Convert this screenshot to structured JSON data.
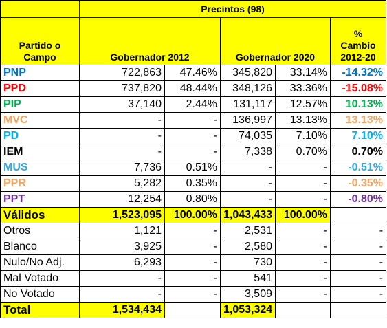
{
  "header": {
    "precincts": "Precintos (98)",
    "party_label_line1": "Partido o",
    "party_label_line2": "Campo",
    "gov2012": "Gobernador 2012",
    "gov2020": "Gobernador 2020",
    "change_line1": "%",
    "change_line2": "Cambio",
    "change_line3": "2012-20"
  },
  "parties": [
    {
      "name": "PNP",
      "color": "#0070c0",
      "v2012": "722,863",
      "p2012": "47.46%",
      "v2020": "345,820",
      "p2020": "33.14%",
      "change": "-14.32%"
    },
    {
      "name": "PPD",
      "color": "#ff0000",
      "v2012": "737,820",
      "p2012": "48.44%",
      "v2020": "348,126",
      "p2020": "33.36%",
      "change": "-15.08%"
    },
    {
      "name": "PIP",
      "color": "#00b050",
      "v2012": "37,140",
      "p2012": "2.44%",
      "v2020": "131,117",
      "p2020": "12.57%",
      "change": "10.13%"
    },
    {
      "name": "MVC",
      "color": "#f4a460",
      "v2012": "-",
      "p2012": "-",
      "v2020": "136,997",
      "p2020": "13.13%",
      "change": "13.13%"
    },
    {
      "name": "PD",
      "color": "#00b0f0",
      "v2012": "-",
      "p2012": "-",
      "v2020": "74,035",
      "p2020": "7.10%",
      "change": "7.10%"
    },
    {
      "name": "IEM",
      "color": "#000000",
      "v2012": "-",
      "p2012": "-",
      "v2020": "7,338",
      "p2020": "0.70%",
      "change": "0.70%"
    },
    {
      "name": "MUS",
      "color": "#33a8e0",
      "v2012": "7,736",
      "p2012": "0.51%",
      "v2020": "-",
      "p2020": "-",
      "change": "-0.51%"
    },
    {
      "name": "PPR",
      "color": "#f4a460",
      "v2012": "5,282",
      "p2012": "0.35%",
      "v2020": "-",
      "p2020": "-",
      "change": "-0.35%"
    },
    {
      "name": "PPT",
      "color": "#7030a0",
      "v2012": "12,254",
      "p2012": "0.80%",
      "v2020": "-",
      "p2020": "-",
      "change": "-0.80%"
    }
  ],
  "valid": {
    "label": "Válidos",
    "v2012": "1,523,095",
    "p2012": "100.00%",
    "v2020": "1,043,433",
    "p2020": "100.00%",
    "change": ""
  },
  "others": [
    {
      "name": "Otros",
      "v2012": "1,121",
      "p2012": "-",
      "v2020": "2,531",
      "p2020": "-",
      "change": "-"
    },
    {
      "name": "Blanco",
      "v2012": "3,925",
      "p2012": "-",
      "v2020": "2,580",
      "p2020": "-",
      "change": "-"
    },
    {
      "name": "Nulo/No Adj.",
      "v2012": "6,293",
      "p2012": "-",
      "v2020": "730",
      "p2020": "-",
      "change": "-"
    },
    {
      "name": "Mal Votado",
      "v2012": "-",
      "p2012": "-",
      "v2020": "541",
      "p2020": "-",
      "change": "-"
    },
    {
      "name": "No Votado",
      "v2012": "-",
      "p2012": "-",
      "v2020": "3,509",
      "p2020": "-",
      "change": "-"
    }
  ],
  "total": {
    "label": "Total",
    "v2012": "1,534,434",
    "p2012": "",
    "v2020": "1,053,324",
    "p2020": "",
    "change": ""
  }
}
